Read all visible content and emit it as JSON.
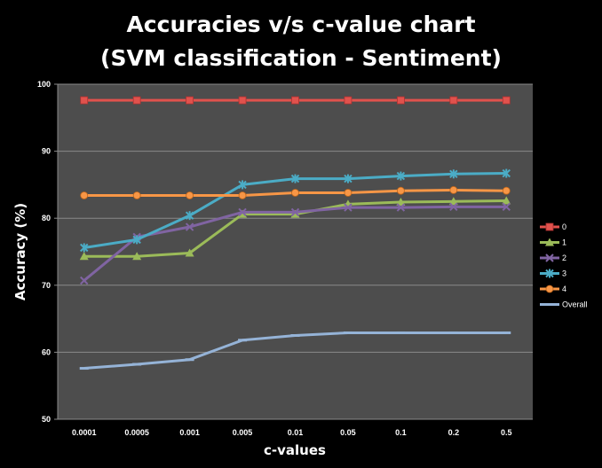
{
  "chart_data": {
    "type": "line",
    "title_line1": "Accuracies v/s c-value chart",
    "title_line2": "(SVM classification - Sentiment)",
    "xlabel": "c-values",
    "ylabel": "Accuracy (%)",
    "ylim": [
      50,
      100
    ],
    "yticks": [
      "100",
      "90",
      "80",
      "70",
      "60",
      "50"
    ],
    "grid": true,
    "legend_position": "right",
    "categories": [
      "0.0001",
      "0.0005",
      "0.001",
      "0.005",
      "0.01",
      "0.05",
      "0.1",
      "0.2",
      "0.5"
    ],
    "series": [
      {
        "name": "0",
        "color": "#e0524d",
        "marker": "square",
        "values": [
          97.6,
          97.6,
          97.6,
          97.6,
          97.6,
          97.6,
          97.6,
          97.6,
          97.6
        ]
      },
      {
        "name": "1",
        "color": "#9bbb59",
        "marker": "triangle",
        "values": [
          74.3,
          74.3,
          74.8,
          80.6,
          80.6,
          82.1,
          82.4,
          82.5,
          82.6
        ]
      },
      {
        "name": "2",
        "color": "#8064a2",
        "marker": "x",
        "values": [
          70.7,
          77.2,
          78.7,
          80.9,
          80.9,
          81.6,
          81.6,
          81.7,
          81.7
        ]
      },
      {
        "name": "3",
        "color": "#4bacc6",
        "marker": "star",
        "values": [
          75.6,
          76.8,
          80.4,
          85.0,
          85.9,
          85.9,
          86.3,
          86.6,
          86.7
        ]
      },
      {
        "name": "4",
        "color": "#f79646",
        "marker": "circle",
        "values": [
          83.4,
          83.4,
          83.4,
          83.4,
          83.8,
          83.8,
          84.1,
          84.2,
          84.1
        ]
      },
      {
        "name": "Overall",
        "color": "#95b3d7",
        "marker": "dash",
        "values": [
          57.6,
          58.2,
          58.9,
          61.8,
          62.5,
          62.9,
          62.9,
          62.9,
          62.9
        ]
      }
    ]
  }
}
